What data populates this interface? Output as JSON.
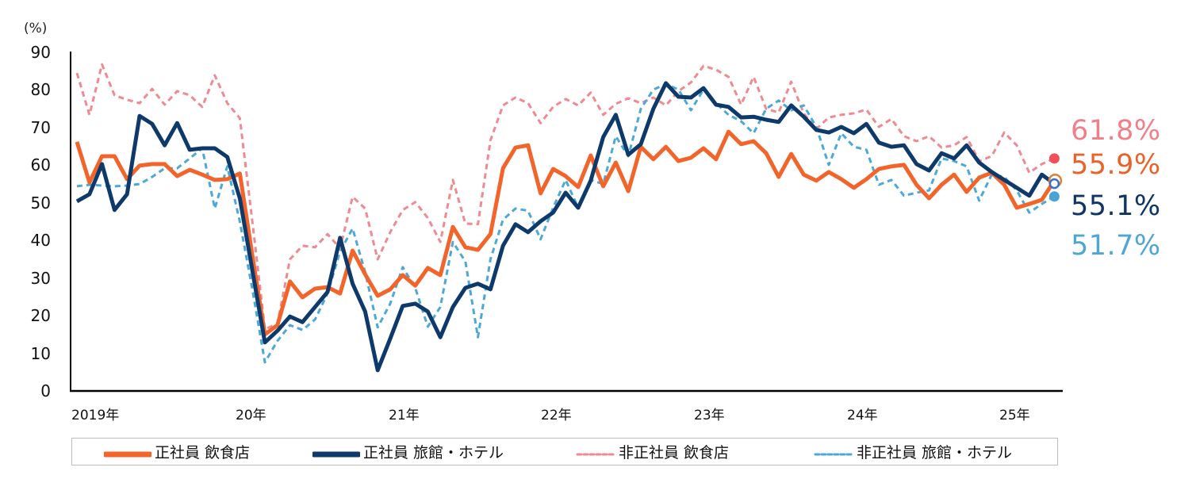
{
  "chart_data": {
    "type": "line",
    "title": "",
    "xlabel": "",
    "ylabel": "(%)",
    "ylim": [
      0,
      90
    ],
    "yticks": [
      0,
      10,
      20,
      30,
      40,
      50,
      60,
      70,
      80,
      90
    ],
    "grid": false,
    "legend_position": "bottom",
    "x_start": "2019-01",
    "x_frequency": "monthly",
    "x_tick_labels": [
      "2019年",
      "20年",
      "21年",
      "22年",
      "23年",
      "24年",
      "25年"
    ],
    "series": [
      {
        "name": "正社員 飲食店",
        "color": "#f2642a",
        "style": "solid",
        "last_value_label": "55.9%",
        "values": [
          66.2,
          55.4,
          62.4,
          62.4,
          56.3,
          59.9,
          60.3,
          60.3,
          57.1,
          58.8,
          57.5,
          56.1,
          56.3,
          57.8,
          36.0,
          15.0,
          17.5,
          29.1,
          24.9,
          27.2,
          27.6,
          25.9,
          37.3,
          31.0,
          25.3,
          27.0,
          30.8,
          28.0,
          32.7,
          30.8,
          43.6,
          38.2,
          37.5,
          41.7,
          59.2,
          64.7,
          65.3,
          52.5,
          59.0,
          57.1,
          54.2,
          62.6,
          54.4,
          60.7,
          53.1,
          64.9,
          61.6,
          64.9,
          61.1,
          62.0,
          64.5,
          61.6,
          68.9,
          65.6,
          66.4,
          63.2,
          56.9,
          63.0,
          57.5,
          55.9,
          58.2,
          56.3,
          54.0,
          56.3,
          59.0,
          59.7,
          60.1,
          54.8,
          51.2,
          54.8,
          57.5,
          52.9,
          56.7,
          58.0,
          54.8,
          48.7,
          49.7,
          50.8,
          55.9
        ]
      },
      {
        "name": "正社員 旅館・ホテル",
        "color": "#0e3a6b",
        "style": "solid",
        "last_value_label": "55.1%",
        "values": [
          50.4,
          52.3,
          60.3,
          48.1,
          52.3,
          73.1,
          71.0,
          65.3,
          71.2,
          64.1,
          64.5,
          64.5,
          62.2,
          51.2,
          32.0,
          12.9,
          16.0,
          19.8,
          18.3,
          22.3,
          26.3,
          40.7,
          28.5,
          21.1,
          5.5,
          13.9,
          22.6,
          23.2,
          21.1,
          14.3,
          22.3,
          27.4,
          28.5,
          27.0,
          38.6,
          44.3,
          42.2,
          45.1,
          47.4,
          52.7,
          48.7,
          55.9,
          67.5,
          73.4,
          62.8,
          65.6,
          75.0,
          81.8,
          78.2,
          78.0,
          80.5,
          76.1,
          75.5,
          72.7,
          72.9,
          72.1,
          71.5,
          75.9,
          72.9,
          69.4,
          68.7,
          70.2,
          68.5,
          71.0,
          66.0,
          64.9,
          65.3,
          60.3,
          58.6,
          63.2,
          61.8,
          65.3,
          60.7,
          58.2,
          56.1,
          54.0,
          51.9,
          57.5,
          55.1
        ]
      },
      {
        "name": "非正社員 飲食店",
        "color": "#ee8a92",
        "style": "dashed",
        "last_value_label": "61.8%",
        "values": [
          84.5,
          73.4,
          86.8,
          78.6,
          77.4,
          76.5,
          80.3,
          76.1,
          79.7,
          78.6,
          75.5,
          83.9,
          76.5,
          72.5,
          45.0,
          16.4,
          17.9,
          35.0,
          38.6,
          38.2,
          41.7,
          37.9,
          51.6,
          48.5,
          35.0,
          42.2,
          48.1,
          50.2,
          46.0,
          39.6,
          56.1,
          44.5,
          44.3,
          66.6,
          75.9,
          78.0,
          76.5,
          71.2,
          75.5,
          77.6,
          75.9,
          79.3,
          73.4,
          76.3,
          77.8,
          76.5,
          78.0,
          75.9,
          79.7,
          82.0,
          86.4,
          85.4,
          83.5,
          76.1,
          83.5,
          75.0,
          74.0,
          82.2,
          73.8,
          69.6,
          72.7,
          73.4,
          73.8,
          74.8,
          70.2,
          72.3,
          67.7,
          66.4,
          67.7,
          64.7,
          65.3,
          67.5,
          61.1,
          62.4,
          68.7,
          65.3,
          58.0,
          60.3,
          61.8
        ]
      },
      {
        "name": "非正社員 旅館・ホテル",
        "color": "#4da8d8",
        "style": "dashed",
        "last_value_label": "51.7%",
        "values": [
          54.4,
          54.8,
          54.6,
          54.4,
          54.6,
          55.0,
          56.9,
          59.2,
          59.2,
          61.8,
          64.5,
          48.5,
          59.7,
          45.0,
          27.0,
          7.6,
          13.3,
          17.5,
          16.2,
          19.0,
          25.9,
          37.1,
          43.2,
          31.6,
          16.9,
          23.2,
          32.9,
          27.4,
          17.1,
          22.3,
          39.6,
          34.4,
          14.3,
          35.0,
          45.5,
          48.5,
          47.9,
          40.3,
          48.7,
          56.1,
          48.7,
          56.1,
          55.0,
          67.7,
          62.4,
          75.0,
          80.1,
          81.6,
          80.1,
          74.6,
          80.1,
          76.5,
          73.4,
          71.7,
          68.5,
          75.0,
          77.2,
          74.6,
          75.9,
          70.2,
          60.1,
          68.5,
          64.9,
          64.1,
          54.8,
          56.1,
          51.9,
          52.7,
          53.3,
          61.8,
          61.1,
          59.7,
          50.6,
          57.5,
          56.9,
          53.3,
          47.4,
          49.7,
          51.7
        ]
      }
    ]
  },
  "axis": {
    "unit": "(%)",
    "y_labels": [
      "90",
      "80",
      "70",
      "60",
      "50",
      "40",
      "30",
      "20",
      "10",
      "0"
    ],
    "x_labels": [
      "2019年",
      "20年",
      "21年",
      "22年",
      "23年",
      "24年",
      "25年"
    ]
  },
  "end_labels": [
    {
      "text": "61.8%",
      "color": "#f07f88"
    },
    {
      "text": "55.9%",
      "color": "#e8622a"
    },
    {
      "text": "55.1%",
      "color": "#0f3566"
    },
    {
      "text": "51.7%",
      "color": "#4ea6d3"
    }
  ],
  "legend": [
    {
      "label": "正社員 飲食店",
      "color": "#f2642a",
      "style": "solid"
    },
    {
      "label": "正社員 旅館・ホテル",
      "color": "#0e3a6b",
      "style": "solid"
    },
    {
      "label": "非正社員 飲食店",
      "color": "#ee8a92",
      "style": "dashed"
    },
    {
      "label": "非正社員 旅館・ホテル",
      "color": "#4da8d8",
      "style": "dashed"
    }
  ]
}
